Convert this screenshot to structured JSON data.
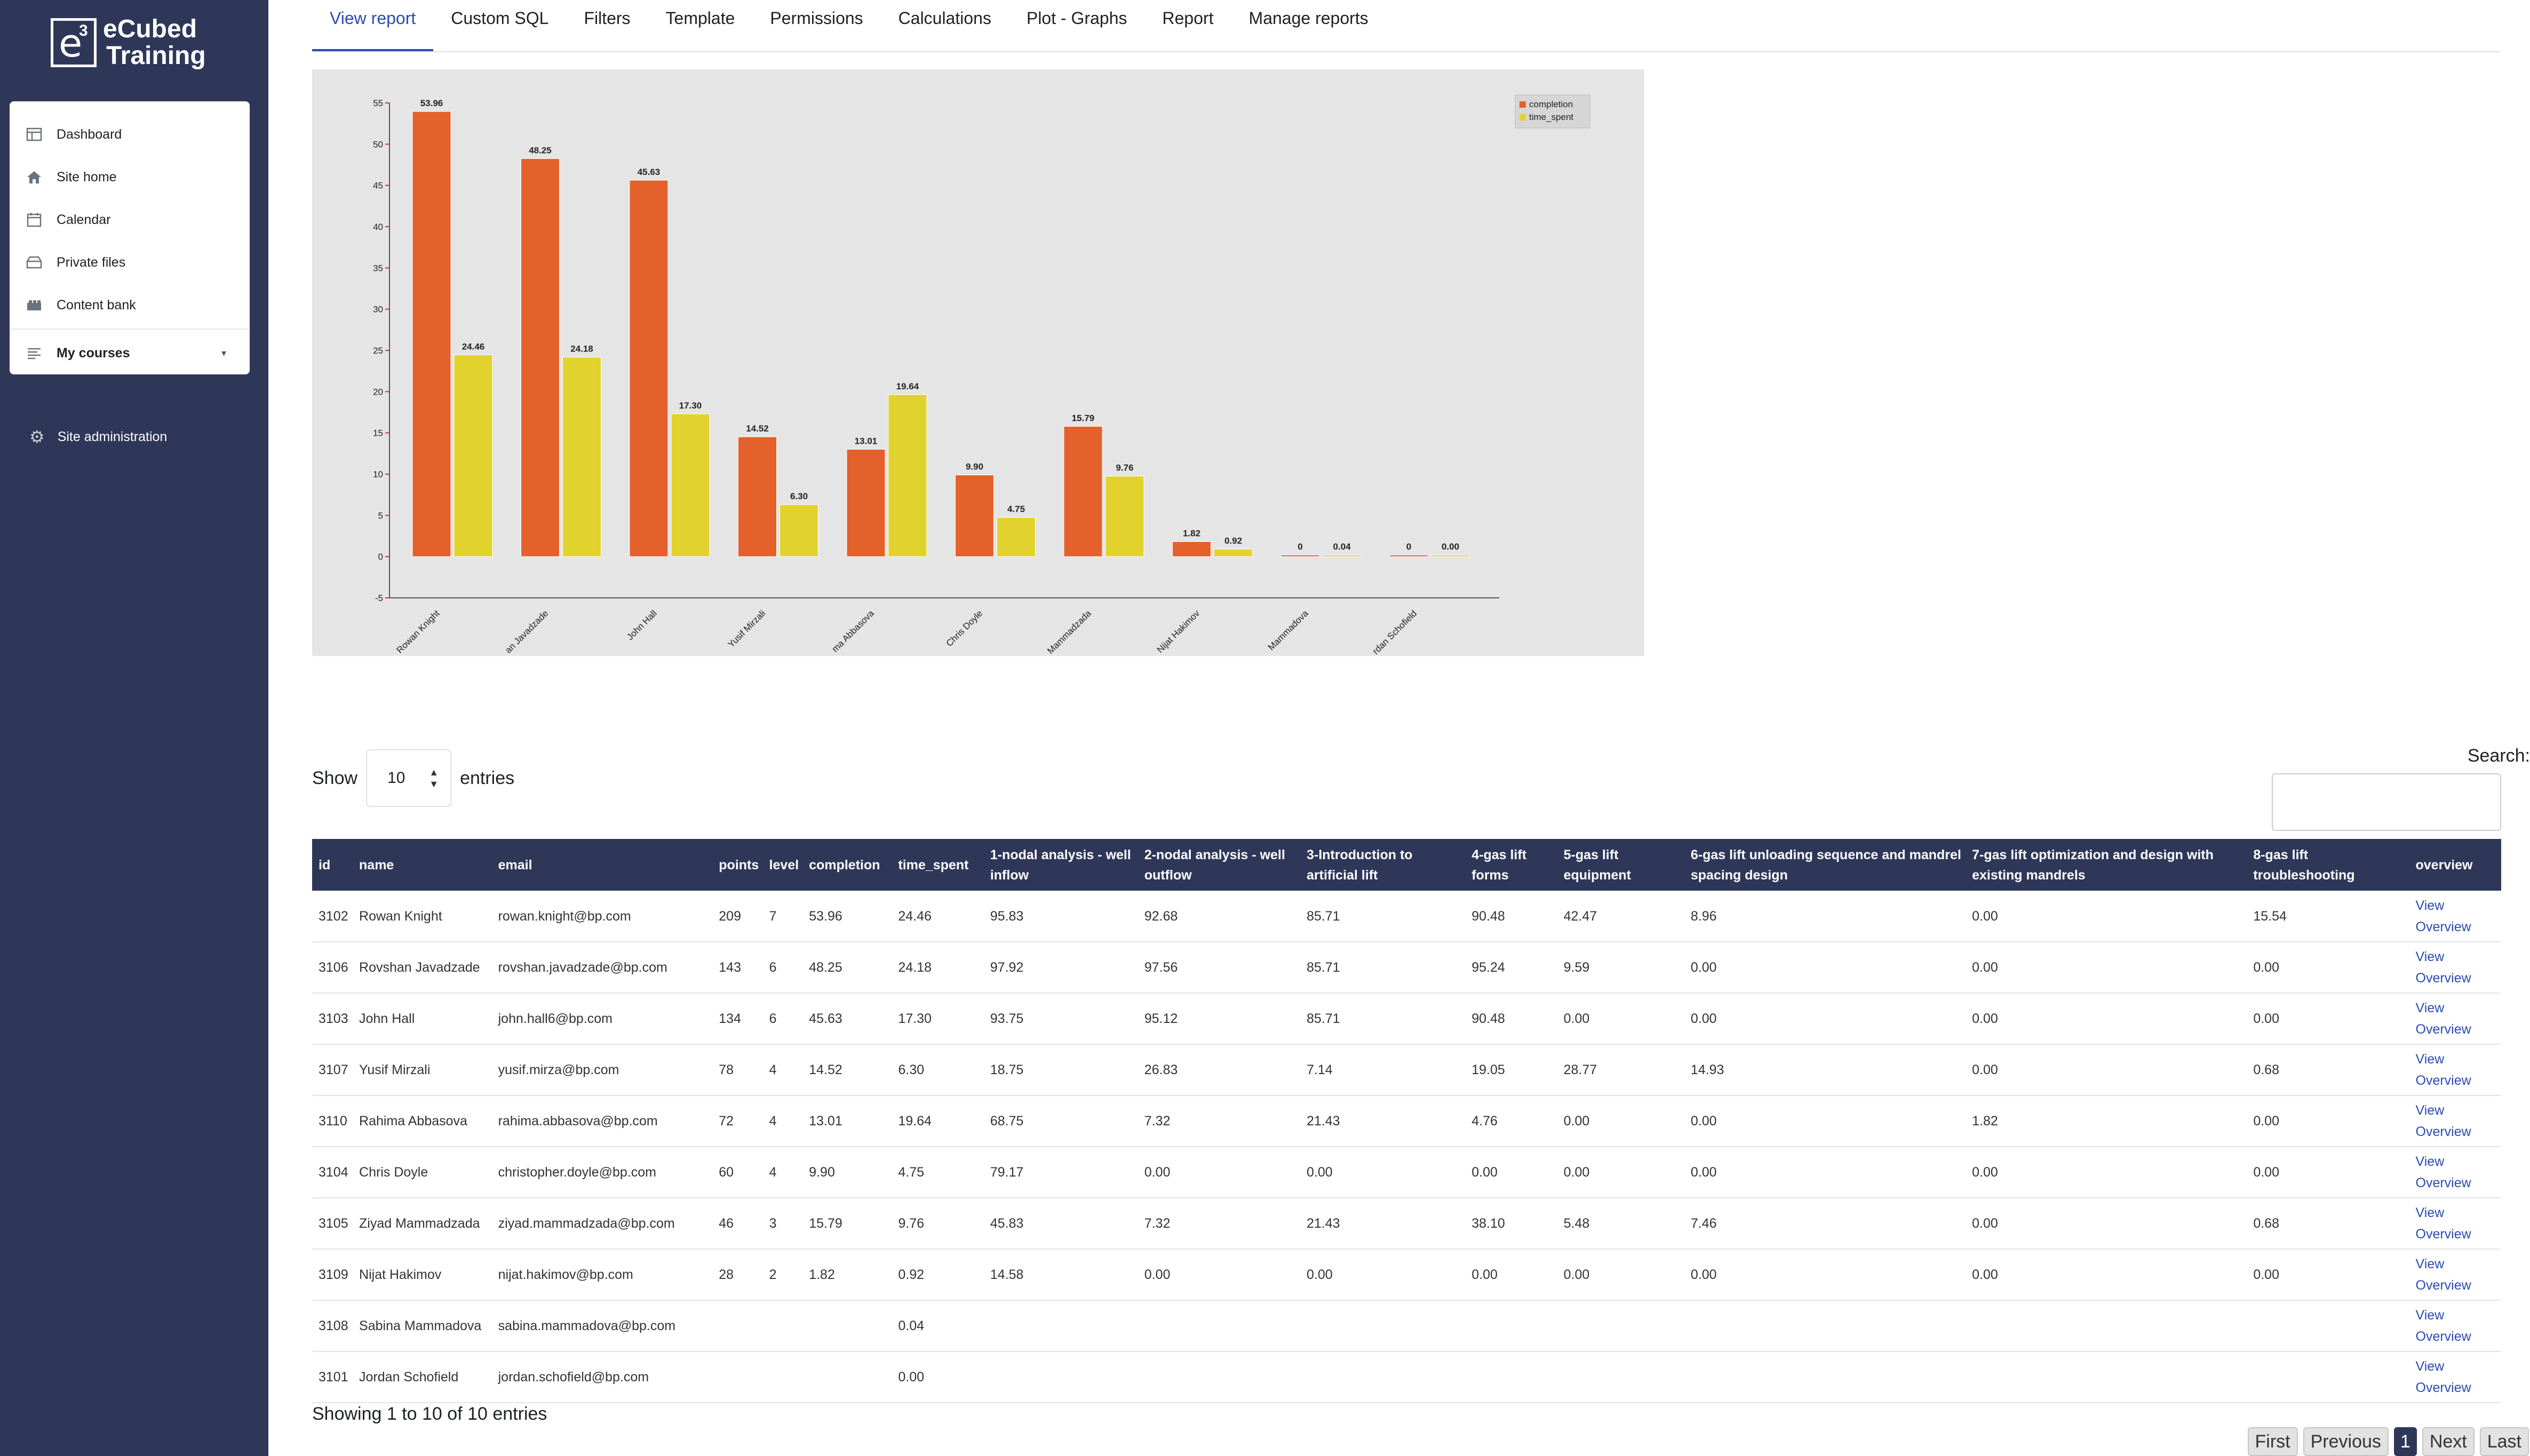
{
  "brand": {
    "logo_letter": "e",
    "logo_sup": "3",
    "name_line1": "eCubed",
    "name_line2": "Training"
  },
  "sidebar": {
    "items": [
      {
        "label": "Dashboard",
        "icon": "dashboard-icon"
      },
      {
        "label": "Site home",
        "icon": "home-icon"
      },
      {
        "label": "Calendar",
        "icon": "calendar-icon"
      },
      {
        "label": "Private files",
        "icon": "files-icon"
      },
      {
        "label": "Content bank",
        "icon": "content-bank-icon"
      }
    ],
    "my_courses": "My courses",
    "site_admin": "Site administration"
  },
  "tabs": [
    "View report",
    "Custom SQL",
    "Filters",
    "Template",
    "Permissions",
    "Calculations",
    "Plot - Graphs",
    "Report",
    "Manage reports"
  ],
  "active_tab": 0,
  "chart_data": {
    "type": "bar",
    "categories": [
      "Rowan Knight",
      "Rovshan Javadzade",
      "John Hall",
      "Yusif Mirzali",
      "Rahima Abbasova",
      "Chris Doyle",
      "Ziyad Mammadzada",
      "Nijat Hakimov",
      "Sabina Mammadova",
      "Jordan Schofield"
    ],
    "category_labels": [
      "Rowan Knight",
      "an Javadzade",
      "John Hall",
      "Yusif Mirzali",
      "ma Abbasova",
      "Chris Doyle",
      "Mammadzada",
      "Nijat Hakimov",
      "Mammadova",
      "rdan Schofield"
    ],
    "series": [
      {
        "name": "completion",
        "color": "#e4612c",
        "values": [
          53.96,
          48.25,
          45.63,
          14.52,
          13.01,
          9.9,
          15.79,
          1.82,
          0,
          0
        ],
        "labels": [
          "53.96",
          "48.25",
          "45.63",
          "14.52",
          "13.01",
          "9.90",
          "15.79",
          "1.82",
          "0",
          "0"
        ]
      },
      {
        "name": "time_spent",
        "color": "#e2d22e",
        "values": [
          24.46,
          24.18,
          17.3,
          6.3,
          19.64,
          4.75,
          9.76,
          0.92,
          0.04,
          0.0
        ],
        "labels": [
          "24.46",
          "24.18",
          "17.30",
          "6.30",
          "19.64",
          "4.75",
          "9.76",
          "0.92",
          "0.04",
          "0.00"
        ]
      }
    ],
    "ylim": [
      -5,
      55
    ],
    "yticks": [
      -5,
      0,
      5,
      10,
      15,
      20,
      25,
      30,
      35,
      40,
      45,
      50,
      55
    ],
    "legend": "top-right"
  },
  "table_controls": {
    "show": "Show",
    "length": "10",
    "entries": "entries",
    "search": "Search:"
  },
  "table": {
    "columns": [
      "id",
      "name",
      "email",
      "points",
      "level",
      "completion",
      "time_spent",
      "1-nodal analysis - well inflow",
      "2-nodal analysis - well outflow",
      "3-Introduction to artificial lift",
      "4-gas lift forms",
      "5-gas lift equipment",
      "6-gas lift unloading sequence and mandrel spacing design",
      "7-gas lift optimization and design with existing mandrels",
      "8-gas lift troubleshooting",
      "overview"
    ],
    "rows": [
      [
        "3102",
        "Rowan  Knight",
        "rowan.knight@bp.com",
        "209",
        "7",
        "53.96",
        "24.46",
        "95.83",
        "92.68",
        "85.71",
        "90.48",
        "42.47",
        "8.96",
        "0.00",
        "15.54"
      ],
      [
        "3106",
        "Rovshan Javadzade",
        "rovshan.javadzade@bp.com",
        "143",
        "6",
        "48.25",
        "24.18",
        "97.92",
        "97.56",
        "85.71",
        "95.24",
        "9.59",
        "0.00",
        "0.00",
        "0.00"
      ],
      [
        "3103",
        "John  Hall",
        "john.hall6@bp.com",
        "134",
        "6",
        "45.63",
        "17.30",
        "93.75",
        "95.12",
        "85.71",
        "90.48",
        "0.00",
        "0.00",
        "0.00",
        "0.00"
      ],
      [
        "3107",
        "Yusif  Mirzali",
        "yusif.mirza@bp.com",
        "78",
        "4",
        "14.52",
        "6.30",
        "18.75",
        "26.83",
        "7.14",
        "19.05",
        "28.77",
        "14.93",
        "0.00",
        "0.68"
      ],
      [
        "3110",
        "Rahima Abbasova",
        "rahima.abbasova@bp.com",
        "72",
        "4",
        "13.01",
        "19.64",
        "68.75",
        "7.32",
        "21.43",
        "4.76",
        "0.00",
        "0.00",
        "1.82",
        "0.00"
      ],
      [
        "3104",
        "Chris  Doyle",
        "christopher.doyle@bp.com",
        "60",
        "4",
        "9.90",
        "4.75",
        "79.17",
        "0.00",
        "0.00",
        "0.00",
        "0.00",
        "0.00",
        "0.00",
        "0.00"
      ],
      [
        "3105",
        "Ziyad Mammadzada",
        "ziyad.mammadzada@bp.com",
        "46",
        "3",
        "15.79",
        "9.76",
        "45.83",
        "7.32",
        "21.43",
        "38.10",
        "5.48",
        "7.46",
        "0.00",
        "0.68"
      ],
      [
        "3109",
        "Nijat  Hakimov",
        "nijat.hakimov@bp.com",
        "28",
        "2",
        "1.82",
        "0.92",
        "14.58",
        "0.00",
        "0.00",
        "0.00",
        "0.00",
        "0.00",
        "0.00",
        "0.00"
      ],
      [
        "3108",
        "Sabina Mammadova",
        "sabina.mammadova@bp.com",
        "",
        "",
        "",
        "0.04",
        "",
        "",
        "",
        "",
        "",
        "",
        "",
        ""
      ],
      [
        "3101",
        "Jordan Schofield",
        "jordan.schofield@bp.com",
        "",
        "",
        "",
        "0.00",
        "",
        "",
        "",
        "",
        "",
        "",
        "",
        ""
      ]
    ],
    "overview_link_line1": "View",
    "overview_link_line2": "Overview"
  },
  "info": "Showing 1 to 10 of 10 entries",
  "pager": {
    "first": "First",
    "previous": "Previous",
    "current": "1",
    "next": "Next",
    "last": "Last"
  }
}
